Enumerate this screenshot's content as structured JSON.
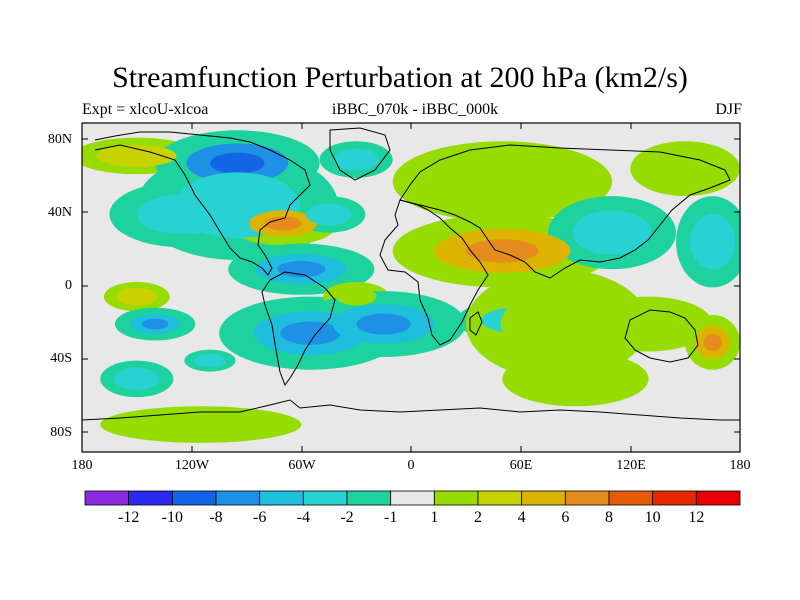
{
  "title": "Streamfunction Perturbation at 200 hPa (km2/s)",
  "subtitle_left": "Expt = xlcoU-xlcoa",
  "subtitle_center": "iBBC_070k - iBBC_000k",
  "subtitle_right": "DJF",
  "map": {
    "projection": "cylindrical equidistant",
    "lon_range": [
      -180,
      180
    ],
    "lat_range": [
      -90,
      90
    ],
    "lat_ticks": [
      {
        "value": 80,
        "label": "80N"
      },
      {
        "value": 40,
        "label": "40N"
      },
      {
        "value": 0,
        "label": "0"
      },
      {
        "value": -40,
        "label": "40S"
      },
      {
        "value": -80,
        "label": "80S"
      }
    ],
    "lon_ticks": [
      {
        "value": -180,
        "label": "180"
      },
      {
        "value": -120,
        "label": "120W"
      },
      {
        "value": -60,
        "label": "60W"
      },
      {
        "value": 0,
        "label": "0"
      },
      {
        "value": 60,
        "label": "60E"
      },
      {
        "value": 120,
        "label": "120E"
      },
      {
        "value": 180,
        "label": "180"
      }
    ],
    "background_color": "#e8e8e8",
    "anomalies": [
      {
        "lon": -150,
        "lat": 72,
        "rlon": 35,
        "rlat": 10,
        "level": 3
      },
      {
        "lon": -150,
        "lat": -5,
        "rlon": 18,
        "rlat": 8,
        "level": 3
      },
      {
        "lon": -140,
        "lat": -20,
        "rlon": 22,
        "rlat": 9,
        "level": -4
      },
      {
        "lon": -125,
        "lat": 40,
        "rlon": 40,
        "rlat": 18,
        "level": -2
      },
      {
        "lon": -110,
        "lat": -40,
        "rlon": 14,
        "rlat": 6,
        "level": -2
      },
      {
        "lon": -95,
        "lat": 68,
        "rlon": 45,
        "rlat": 18,
        "level": -6
      },
      {
        "lon": -95,
        "lat": 45,
        "rlon": 55,
        "rlat": 30,
        "level": -2
      },
      {
        "lon": -70,
        "lat": 35,
        "rlon": 30,
        "rlat": 12,
        "level": 4
      },
      {
        "lon": -60,
        "lat": 10,
        "rlon": 40,
        "rlat": 14,
        "level": -4
      },
      {
        "lon": -55,
        "lat": -25,
        "rlon": 50,
        "rlat": 20,
        "level": -4
      },
      {
        "lon": -45,
        "lat": 40,
        "rlon": 20,
        "rlat": 10,
        "level": -2
      },
      {
        "lon": -30,
        "lat": -5,
        "rlon": 18,
        "rlat": 8,
        "level": 2
      },
      {
        "lon": -30,
        "lat": 70,
        "rlon": 20,
        "rlat": 10,
        "level": -2
      },
      {
        "lon": -15,
        "lat": -20,
        "rlon": 45,
        "rlat": 18,
        "level": -4
      },
      {
        "lon": 50,
        "lat": 20,
        "rlon": 60,
        "rlat": 20,
        "level": 4
      },
      {
        "lon": 50,
        "lat": 58,
        "rlon": 60,
        "rlat": 22,
        "level": 2
      },
      {
        "lon": 60,
        "lat": -18,
        "rlon": 35,
        "rlat": 12,
        "level": -2
      },
      {
        "lon": 80,
        "lat": -20,
        "rlon": 50,
        "rlat": 30,
        "level": 2
      },
      {
        "lon": 90,
        "lat": -50,
        "rlon": 40,
        "rlat": 15,
        "level": 2
      },
      {
        "lon": 110,
        "lat": 30,
        "rlon": 35,
        "rlat": 20,
        "level": -2
      },
      {
        "lon": 130,
        "lat": -20,
        "rlon": 35,
        "rlat": 15,
        "level": 2
      },
      {
        "lon": 150,
        "lat": 65,
        "rlon": 30,
        "rlat": 15,
        "level": 2
      },
      {
        "lon": 165,
        "lat": 25,
        "rlon": 20,
        "rlat": 25,
        "level": -2
      },
      {
        "lon": 165,
        "lat": -30,
        "rlon": 15,
        "rlat": 15,
        "level": 4
      },
      {
        "lon": -115,
        "lat": -75,
        "rlon": 55,
        "rlat": 10,
        "level": 2
      },
      {
        "lon": -150,
        "lat": -50,
        "rlon": 20,
        "rlat": 10,
        "level": -2
      }
    ]
  },
  "colorbar": {
    "labels": [
      "-12",
      "-10",
      "-8",
      "-6",
      "-4",
      "-2",
      "-1",
      "1",
      "2",
      "4",
      "6",
      "8",
      "10",
      "12"
    ],
    "colors": [
      "#8a2be2",
      "#2b2bf0",
      "#1464e6",
      "#1e90e6",
      "#1ebedc",
      "#28d2d2",
      "#1ed2a0",
      "#e8e8e8",
      "#96dc00",
      "#c8d200",
      "#dcb400",
      "#e68c1e",
      "#e65a0a",
      "#e62800",
      "#e60000"
    ]
  }
}
